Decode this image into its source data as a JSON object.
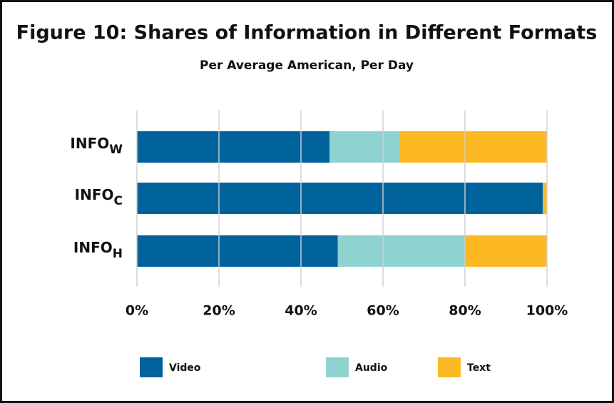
{
  "chart_data": {
    "type": "stacked-barh",
    "title": "Figure 10:  Shares of Information in Different Formats",
    "subtitle": "Per Average American, Per Day",
    "categories": [
      "INFOW",
      "INFOC",
      "INFOH"
    ],
    "series": [
      {
        "name": "Video",
        "color": "#00629b",
        "values": [
          47,
          99,
          49
        ]
      },
      {
        "name": "Audio",
        "color": "#8fd3d0",
        "values": [
          17,
          0,
          31
        ]
      },
      {
        "name": "Text",
        "color": "#fdb924",
        "values": [
          36,
          1,
          20
        ]
      }
    ],
    "xlim": [
      0,
      100
    ],
    "xticks": [
      {
        "value": 0,
        "label": "0%"
      },
      {
        "value": 20,
        "label": "20%"
      },
      {
        "value": 40,
        "label": "40%"
      },
      {
        "value": 60,
        "label": "60%"
      },
      {
        "value": 80,
        "label": "80%"
      },
      {
        "value": 100,
        "label": "100%"
      }
    ],
    "grid": true
  }
}
